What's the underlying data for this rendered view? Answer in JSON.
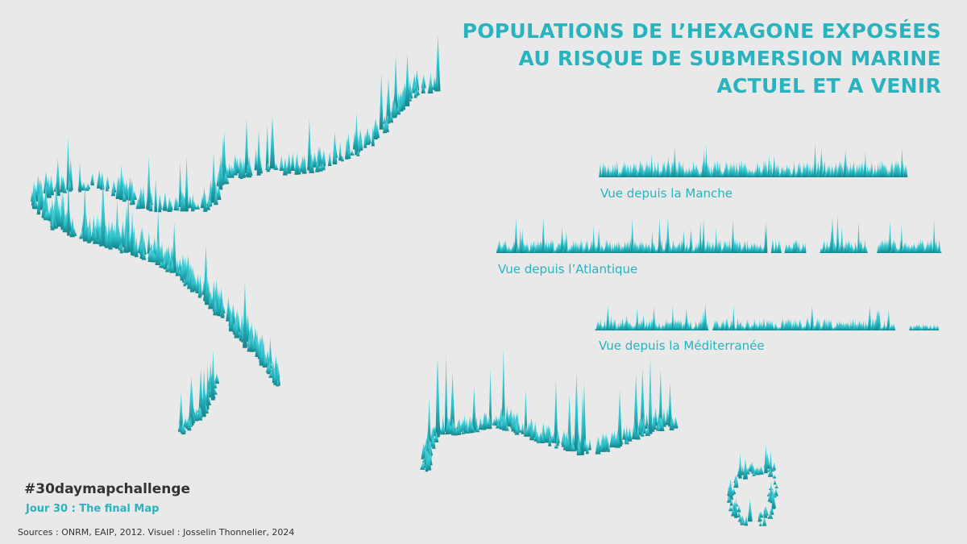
{
  "title": {
    "line1": "POPULATIONS DE L’HEXAGONE EXPOSÉES",
    "line2": "AU RISQUE DE SUBMERSION MARINE",
    "line3": "ACTUEL ET A VENIR"
  },
  "profiles": {
    "manche": "Vue depuis la Manche",
    "atlantique": "Vue depuis l’Atlantique",
    "mediterranee": "Vue depuis la Méditerranée"
  },
  "footer": {
    "hashtag": "#30daymapchallenge",
    "subtitle": "Jour 30 : The final Map",
    "sources": "Sources : ONRM, EAIP, 2012. Visuel : Josselin Thonnelier, 2024"
  },
  "colors": {
    "background": "#e9e9e9",
    "spike": "#2cc0c9",
    "spike_dark": "#1b8f99",
    "title": "#29b3bf"
  }
}
